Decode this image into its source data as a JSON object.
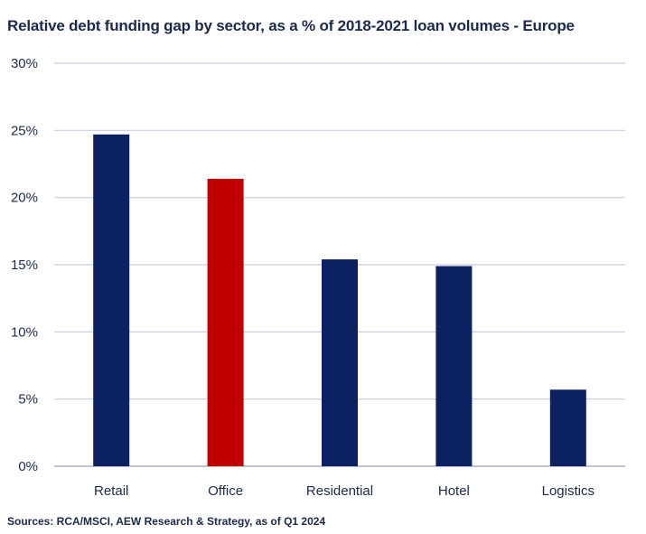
{
  "title": "Relative debt funding gap by sector, as a % of 2018-2021 loan volumes - Europe",
  "source": "Sources: RCA/MSCI, AEW Research & Strategy, as of Q1 2024",
  "chart_data": {
    "type": "bar",
    "title": "Relative debt funding gap by sector, as a % of 2018-2021 loan volumes - Europe",
    "xlabel": "",
    "ylabel": "",
    "categories": [
      "Retail",
      "Office",
      "Residential",
      "Hotel",
      "Logistics"
    ],
    "values": [
      24.7,
      21.4,
      15.4,
      14.9,
      5.7
    ],
    "colors": [
      "#0b2161",
      "#c00000",
      "#0b2161",
      "#0b2161",
      "#0b2161"
    ],
    "ylim": [
      0,
      30
    ],
    "yticks": [
      0,
      5,
      10,
      15,
      20,
      25,
      30
    ],
    "ytick_labels": [
      "0%",
      "5%",
      "10%",
      "15%",
      "20%",
      "25%",
      "30%"
    ],
    "grid": true,
    "legend": "none"
  }
}
